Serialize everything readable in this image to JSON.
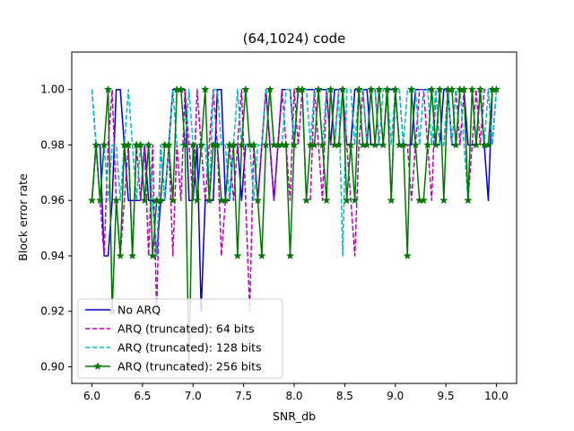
{
  "chart_data": {
    "type": "line",
    "title": "(64,1024) code",
    "xlabel": "SNR_db",
    "ylabel": "Block error rate",
    "xlim": [
      5.8,
      10.2
    ],
    "ylim": [
      0.894,
      1.0135
    ],
    "xticks": [
      6.0,
      6.5,
      7.0,
      7.5,
      8.0,
      8.5,
      9.0,
      9.5,
      10.0
    ],
    "xtick_labels": [
      "6.0",
      "6.5",
      "7.0",
      "7.5",
      "8.0",
      "8.5",
      "9.0",
      "9.5",
      "10.0"
    ],
    "yticks": [
      0.9,
      0.92,
      0.94,
      0.96,
      0.98,
      1.0
    ],
    "ytick_labels": [
      "0.90",
      "0.92",
      "0.94",
      "0.96",
      "0.98",
      "1.00"
    ],
    "grid": false,
    "legend_position": "lower-left",
    "x": [
      6.0,
      6.04,
      6.08,
      6.12,
      6.16,
      6.2,
      6.24,
      6.28,
      6.32,
      6.36,
      6.4,
      6.44,
      6.48,
      6.52,
      6.56,
      6.6,
      6.64,
      6.68,
      6.72,
      6.76,
      6.8,
      6.84,
      6.88,
      6.92,
      6.96,
      7.0,
      7.04,
      7.08,
      7.12,
      7.16,
      7.2,
      7.24,
      7.28,
      7.32,
      7.36,
      7.4,
      7.44,
      7.48,
      7.52,
      7.56,
      7.6,
      7.64,
      7.68,
      7.72,
      7.76,
      7.8,
      7.84,
      7.88,
      7.92,
      7.96,
      8.0,
      8.04,
      8.08,
      8.12,
      8.16,
      8.2,
      8.24,
      8.28,
      8.32,
      8.36,
      8.4,
      8.44,
      8.48,
      8.52,
      8.56,
      8.6,
      8.64,
      8.68,
      8.72,
      8.76,
      8.8,
      8.84,
      8.88,
      8.92,
      8.96,
      9.0,
      9.04,
      9.08,
      9.12,
      9.16,
      9.2,
      9.24,
      9.28,
      9.32,
      9.36,
      9.4,
      9.44,
      9.48,
      9.52,
      9.56,
      9.6,
      9.64,
      9.68,
      9.72,
      9.76,
      9.8,
      9.84,
      9.88,
      9.92,
      9.96,
      10.0
    ],
    "series": [
      {
        "name": "No ARQ",
        "color": "#0000cc",
        "dash": "solid",
        "marker": "none",
        "values": [
          0.96,
          0.98,
          0.98,
          0.94,
          0.94,
          0.96,
          1.0,
          1.0,
          0.98,
          0.96,
          0.96,
          0.96,
          0.96,
          0.98,
          0.96,
          0.96,
          0.94,
          0.96,
          0.96,
          0.98,
          1.0,
          1.0,
          1.0,
          1.0,
          0.96,
          0.96,
          0.98,
          0.92,
          0.96,
          0.96,
          0.96,
          1.0,
          1.0,
          0.96,
          0.96,
          0.98,
          0.98,
          0.96,
          0.98,
          0.98,
          0.98,
          0.96,
          0.98,
          1.0,
          0.98,
          0.96,
          0.98,
          1.0,
          1.0,
          1.0,
          0.98,
          1.0,
          1.0,
          1.0,
          1.0,
          1.0,
          1.0,
          1.0,
          1.0,
          0.98,
          1.0,
          1.0,
          1.0,
          0.98,
          0.98,
          1.0,
          1.0,
          1.0,
          1.0,
          0.98,
          0.98,
          0.98,
          0.98,
          1.0,
          1.0,
          1.0,
          0.98,
          0.98,
          0.98,
          0.98,
          1.0,
          1.0,
          1.0,
          1.0,
          1.0,
          0.98,
          0.98,
          1.0,
          1.0,
          0.98,
          0.98,
          1.0,
          1.0,
          0.98,
          0.98,
          0.98,
          1.0,
          0.98,
          0.96,
          1.0,
          1.0
        ]
      },
      {
        "name": "ARQ (truncated): 64 bits",
        "color": "#bb00bb",
        "dash": "dashed",
        "marker": "none",
        "values": [
          1.0,
          0.98,
          0.96,
          0.94,
          0.98,
          1.0,
          0.96,
          0.94,
          0.96,
          0.98,
          0.94,
          0.98,
          0.96,
          0.98,
          0.94,
          0.98,
          0.92,
          0.98,
          0.96,
          0.98,
          0.94,
          0.98,
          0.96,
          1.0,
          0.98,
          0.96,
          1.0,
          0.98,
          0.96,
          0.98,
          1.0,
          0.98,
          0.94,
          0.96,
          0.98,
          0.96,
          0.98,
          1.0,
          0.96,
          0.92,
          0.98,
          0.96,
          0.98,
          1.0,
          0.98,
          0.96,
          0.98,
          1.0,
          0.98,
          0.96,
          1.0,
          0.98,
          1.0,
          0.96,
          0.96,
          1.0,
          0.98,
          0.96,
          1.0,
          0.98,
          0.98,
          1.0,
          1.0,
          0.98,
          0.96,
          0.94,
          0.98,
          1.0,
          0.98,
          1.0,
          1.0,
          0.98,
          0.98,
          1.0,
          0.96,
          1.0,
          1.0,
          0.98,
          0.98,
          0.96,
          0.98,
          1.0,
          1.0,
          0.98,
          0.96,
          1.0,
          0.98,
          0.98,
          1.0,
          0.98,
          1.0,
          0.98,
          1.0,
          0.96,
          0.98,
          1.0,
          0.98,
          1.0,
          1.0,
          0.98,
          1.0
        ]
      },
      {
        "name": "ARQ (truncated): 128 bits",
        "color": "#00bbcc",
        "dash": "dashed",
        "marker": "none",
        "values": [
          1.0,
          0.98,
          0.96,
          0.98,
          0.96,
          0.98,
          0.98,
          0.96,
          0.98,
          1.0,
          0.98,
          0.96,
          0.98,
          0.98,
          0.98,
          0.96,
          0.94,
          0.98,
          0.96,
          0.98,
          1.0,
          0.98,
          0.98,
          0.98,
          1.0,
          0.98,
          0.96,
          0.98,
          0.98,
          0.96,
          1.0,
          1.0,
          0.98,
          0.98,
          0.96,
          0.98,
          1.0,
          0.98,
          0.98,
          0.98,
          0.96,
          0.98,
          0.98,
          1.0,
          1.0,
          0.98,
          0.98,
          0.98,
          1.0,
          1.0,
          0.98,
          1.0,
          1.0,
          1.0,
          0.98,
          1.0,
          1.0,
          0.98,
          1.0,
          1.0,
          0.98,
          1.0,
          0.94,
          1.0,
          1.0,
          0.98,
          1.0,
          1.0,
          0.98,
          1.0,
          1.0,
          0.98,
          1.0,
          1.0,
          0.98,
          1.0,
          1.0,
          0.98,
          1.0,
          1.0,
          1.0,
          0.98,
          1.0,
          1.0,
          0.98,
          1.0,
          0.98,
          0.98,
          1.0,
          0.98,
          1.0,
          1.0,
          0.98,
          0.96,
          1.0,
          0.98,
          1.0,
          0.98,
          1.0,
          0.98,
          1.0
        ]
      },
      {
        "name": "ARQ (truncated): 256 bits",
        "color": "#007700",
        "dash": "solid",
        "marker": "star",
        "values": [
          0.96,
          0.98,
          0.96,
          0.98,
          1.0,
          0.92,
          0.96,
          0.94,
          0.98,
          0.98,
          0.94,
          0.98,
          0.98,
          0.96,
          0.98,
          0.94,
          0.96,
          0.96,
          0.98,
          0.98,
          0.96,
          1.0,
          1.0,
          0.98,
          0.9,
          0.98,
          0.96,
          0.98,
          1.0,
          0.96,
          0.98,
          0.98,
          0.96,
          0.96,
          0.98,
          0.98,
          0.94,
          0.98,
          1.0,
          0.98,
          0.98,
          0.96,
          0.94,
          0.98,
          1.0,
          0.98,
          0.98,
          0.98,
          0.98,
          0.94,
          0.98,
          1.0,
          1.0,
          0.96,
          0.98,
          0.98,
          1.0,
          0.98,
          0.96,
          1.0,
          0.98,
          0.98,
          1.0,
          0.96,
          0.98,
          0.96,
          1.0,
          0.98,
          0.98,
          1.0,
          0.98,
          1.0,
          0.98,
          1.0,
          0.96,
          1.0,
          0.98,
          0.98,
          0.94,
          1.0,
          0.98,
          0.96,
          0.96,
          0.98,
          1.0,
          0.98,
          1.0,
          0.96,
          1.0,
          1.0,
          0.98,
          1.0,
          1.0,
          0.96,
          1.0,
          0.98,
          1.0,
          0.98,
          0.98,
          1.0,
          1.0
        ]
      }
    ]
  }
}
